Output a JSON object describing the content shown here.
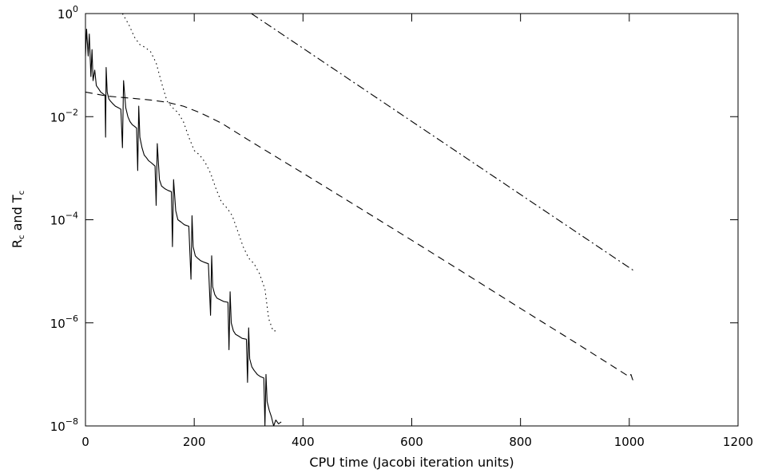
{
  "chart_data": {
    "type": "line",
    "xlabel": "CPU time (Jacobi iteration units)",
    "ylabel_main_1": "R",
    "ylabel_sub_1": "c",
    "ylabel_and": " and T",
    "ylabel_sub_2": "c",
    "xlim": [
      0,
      1200
    ],
    "ylim": [
      1e-08,
      1
    ],
    "yscale": "log",
    "x_ticks": [
      0,
      200,
      400,
      600,
      800,
      1000,
      1200
    ],
    "x_tick_labels": [
      "0",
      "200",
      "400",
      "600",
      "800",
      "1000",
      "1200"
    ],
    "y_ticks": [
      {
        "value": 1,
        "base": "10",
        "exp": "0"
      },
      {
        "value": 0.01,
        "base": "10",
        "exp": "−2"
      },
      {
        "value": 0.0001,
        "base": "10",
        "exp": "−4"
      },
      {
        "value": 1e-06,
        "base": "10",
        "exp": "−6"
      },
      {
        "value": 1e-08,
        "base": "10",
        "exp": "−8"
      }
    ],
    "grid": false,
    "legend": "none",
    "series": [
      {
        "style": "dash-dot",
        "x": [
          305,
          1010
        ],
        "y": [
          1.0,
          1e-05
        ]
      },
      {
        "style": "dashed",
        "x": [
          0,
          40,
          80,
          120,
          150,
          180,
          210,
          250,
          300,
          400,
          500,
          600,
          700,
          800,
          900,
          1000,
          1003,
          1006,
          1010
        ],
        "y": [
          0.03,
          0.025,
          0.023,
          0.021,
          0.019,
          0.016,
          0.012,
          0.0075,
          0.0035,
          0.0008,
          0.00018,
          4e-05,
          8.8e-06,
          1.9e-06,
          4.2e-07,
          9e-08,
          1e-07,
          8e-08,
          7e-08
        ]
      },
      {
        "style": "dotted",
        "x": [
          68,
          80,
          90,
          100,
          110,
          120,
          130,
          140,
          150,
          160,
          170,
          180,
          190,
          200,
          210,
          220,
          230,
          240,
          250,
          260,
          270,
          280,
          290,
          300,
          310,
          320,
          330,
          337,
          345,
          350
        ],
        "y": [
          1.0,
          0.6,
          0.35,
          0.25,
          0.22,
          0.18,
          0.11,
          0.045,
          0.02,
          0.015,
          0.012,
          0.008,
          0.004,
          0.0022,
          0.0018,
          0.0013,
          0.0008,
          0.0004,
          0.00022,
          0.00017,
          0.00012,
          6e-05,
          3e-05,
          1.8e-05,
          1.4e-05,
          9e-06,
          4.5e-06,
          1.2e-06,
          7e-07,
          7e-07
        ]
      },
      {
        "style": "solid",
        "x": [
          0,
          2,
          5,
          7,
          10,
          12,
          14,
          17,
          20,
          24,
          28,
          32,
          36,
          37,
          38,
          40,
          43,
          46,
          50,
          55,
          60,
          65,
          68,
          70,
          74,
          78,
          82,
          86,
          90,
          94,
          96,
          98,
          100,
          104,
          108,
          112,
          116,
          120,
          124,
          128,
          130,
          132,
          136,
          140,
          146,
          152,
          158,
          160,
          162,
          166,
          170,
          176,
          182,
          190,
          194,
          196,
          198,
          202,
          206,
          212,
          218,
          226,
          230,
          232,
          234,
          238,
          242,
          248,
          254,
          262,
          264,
          266,
          268,
          272,
          276,
          282,
          288,
          296,
          298,
          300,
          302,
          306,
          310,
          316,
          322,
          328,
          330,
          332,
          334,
          338,
          342,
          346,
          350,
          355,
          360
        ],
        "y": [
          0.15,
          0.5,
          0.15,
          0.4,
          0.06,
          0.2,
          0.05,
          0.08,
          0.04,
          0.035,
          0.03,
          0.028,
          0.026,
          0.004,
          0.09,
          0.03,
          0.022,
          0.02,
          0.018,
          0.016,
          0.015,
          0.014,
          0.0025,
          0.05,
          0.015,
          0.01,
          0.008,
          0.007,
          0.0065,
          0.006,
          0.0009,
          0.016,
          0.004,
          0.0025,
          0.0018,
          0.0016,
          0.0014,
          0.0013,
          0.0012,
          0.0011,
          0.00019,
          0.003,
          0.0006,
          0.00045,
          0.0004,
          0.00037,
          0.00035,
          3e-05,
          0.0006,
          0.00015,
          0.0001,
          9e-05,
          8e-05,
          7.5e-05,
          7e-06,
          0.00012,
          3e-05,
          2e-05,
          1.8e-05,
          1.6e-05,
          1.5e-05,
          1.4e-05,
          1.4e-06,
          2e-05,
          5e-06,
          3.5e-06,
          3e-06,
          2.8e-06,
          2.6e-06,
          2.5e-06,
          3e-07,
          4e-06,
          1e-06,
          7e-07,
          6e-07,
          5.5e-07,
          5e-07,
          4.8e-07,
          7e-08,
          8e-07,
          2e-07,
          1.4e-07,
          1.2e-07,
          1e-07,
          9e-08,
          8.5e-08,
          1e-08,
          1e-07,
          3e-08,
          2e-08,
          1.5e-08,
          1e-08,
          1.3e-08,
          1.1e-08,
          1.2e-08
        ]
      }
    ]
  }
}
